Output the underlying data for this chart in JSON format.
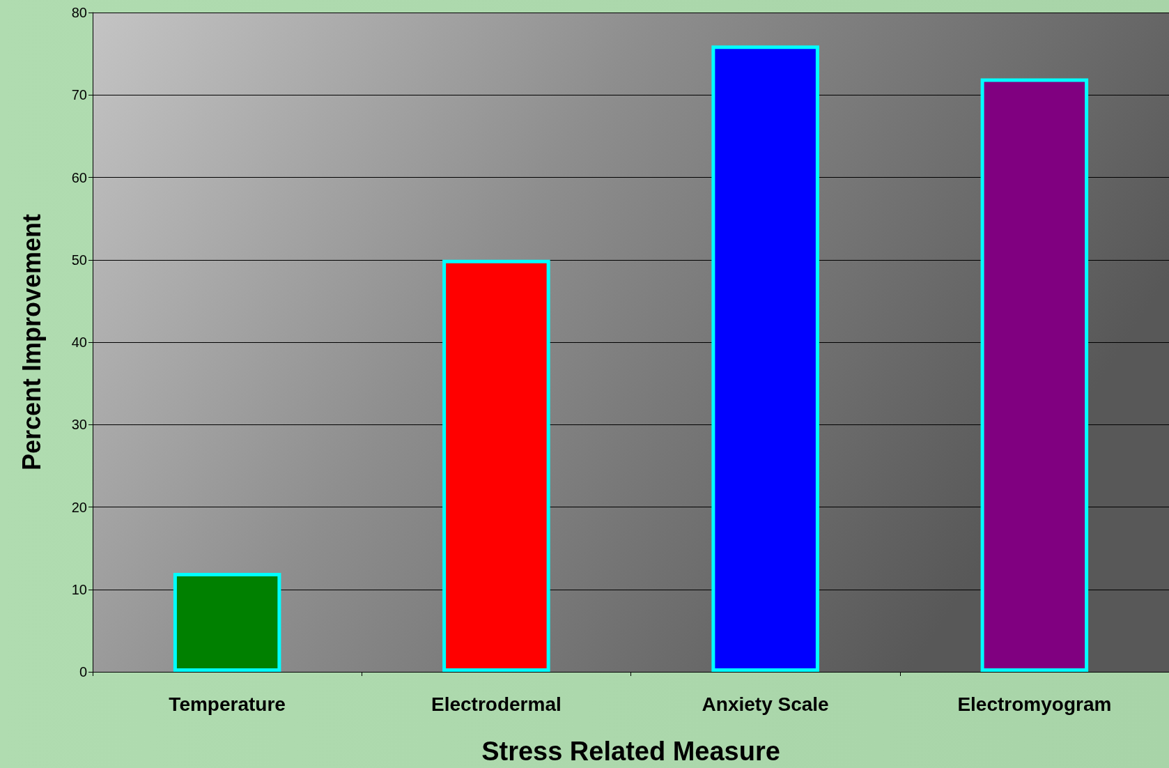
{
  "chart_data": {
    "type": "bar",
    "xlabel": "Stress Related Measure",
    "ylabel": "Percent Improvement",
    "categories": [
      "Temperature",
      "Electrodermal",
      "Anxiety Scale",
      "Electromyogram"
    ],
    "values": [
      12,
      50,
      76,
      72
    ],
    "colors": [
      "#008000",
      "#ff0000",
      "#0000ff",
      "#800080"
    ],
    "ylim": [
      0,
      80
    ],
    "yticks": [
      0,
      10,
      20,
      30,
      40,
      50,
      60,
      70,
      80
    ],
    "grid": "y"
  }
}
